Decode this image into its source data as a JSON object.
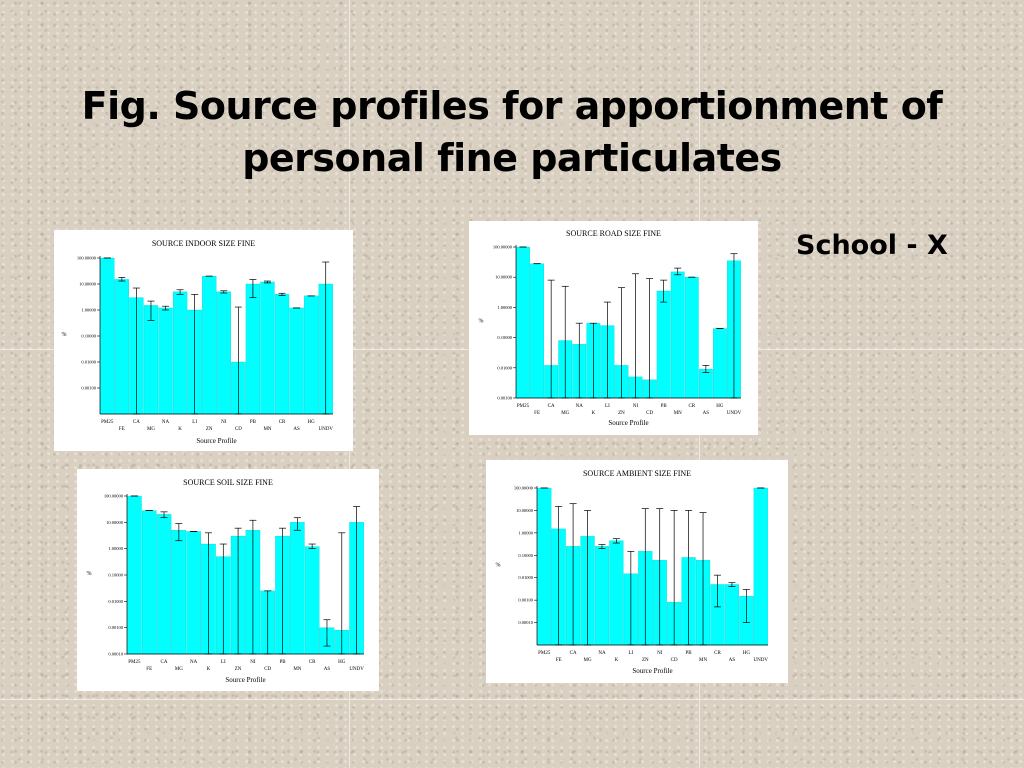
{
  "slide": {
    "title_line1": "Fig. Source profiles for apportionment of",
    "title_line2": "personal fine particulates",
    "subtitle": "School - X"
  },
  "colors": {
    "bar": "#00ffff",
    "bar_edge": "#00c8c8",
    "error": "#000000",
    "axis": "#000000"
  },
  "chart_data": [
    {
      "id": "indoor",
      "type": "bar",
      "title": "SOURCE  INDOOR   SIZE FINE",
      "xlabel": "Source Profile",
      "ylabel": "%",
      "yscale": "log",
      "ylim": [
        0.0001,
        100
      ],
      "yticks": [
        "100.00000",
        "10.00000",
        "1.00000",
        "0.10000",
        "0.01000",
        "0.00100"
      ],
      "categories": [
        "PM25",
        "FE",
        "CA",
        "MG",
        "NA",
        "K",
        "LI",
        "ZN",
        "NI",
        "CD",
        "PB",
        "MN",
        "CR",
        "AS",
        "HG",
        "UNDV"
      ],
      "values": [
        100,
        15,
        3,
        1.5,
        1.2,
        5,
        1,
        20,
        5,
        0.01,
        10,
        12,
        4,
        1.2,
        3.5,
        10
      ],
      "error_low": [
        100,
        13,
        0.0001,
        0.4,
        1.0,
        4,
        0.0001,
        20,
        4.5,
        0.0001,
        3,
        11,
        3.6,
        1.2,
        3.5,
        0.0001
      ],
      "error_high": [
        100,
        18,
        7,
        2.2,
        1.4,
        6,
        4,
        20,
        5.5,
        1.3,
        15,
        13,
        4.4,
        1.2,
        3.5,
        70
      ]
    },
    {
      "id": "road",
      "type": "bar",
      "title": "SOURCE   ROAD      SIZE FINE",
      "xlabel": "Source Profile",
      "ylabel": "%",
      "yscale": "log",
      "ylim": [
        0.001,
        100
      ],
      "yticks": [
        "100.00000",
        "10.00000",
        "1.00000",
        "0.10000",
        "0.01000",
        "0.00100"
      ],
      "categories": [
        "PM25",
        "FE",
        "CA",
        "MG",
        "NA",
        "K",
        "LI",
        "ZN",
        "NI",
        "CD",
        "PB",
        "MN",
        "CR",
        "AS",
        "HG",
        "UNDV"
      ],
      "values": [
        100,
        28,
        0.012,
        0.08,
        0.06,
        0.3,
        0.25,
        0.012,
        0.005,
        0.004,
        3.5,
        15,
        10,
        0.009,
        0.2,
        35
      ],
      "error_low": [
        100,
        28,
        0.001,
        0.001,
        0.001,
        0.001,
        0.001,
        0.001,
        0.001,
        0.001,
        1.5,
        12,
        10,
        0.007,
        0.2,
        0.001
      ],
      "error_high": [
        100,
        28,
        8,
        5,
        0.3,
        0.3,
        1.5,
        4.5,
        13,
        9,
        8,
        20,
        10,
        0.012,
        0.2,
        60
      ]
    },
    {
      "id": "soil",
      "type": "bar",
      "title": "SOURCE   SOIL      SIZE FINE",
      "xlabel": "Source Profile",
      "ylabel": "%",
      "yscale": "log",
      "ylim": [
        0.0001,
        100
      ],
      "yticks": [
        "100.00000",
        "10.00000",
        "1.00000",
        "0.10000",
        "0.01000",
        "0.00100",
        "0.00010"
      ],
      "categories": [
        "PM25",
        "FE",
        "CA",
        "MG",
        "NA",
        "K",
        "LI",
        "ZN",
        "NI",
        "CD",
        "PB",
        "MN",
        "CR",
        "AS",
        "HG",
        "UNDV"
      ],
      "values": [
        100,
        28,
        20,
        5,
        4.5,
        1.5,
        0.5,
        3,
        5,
        0.025,
        3,
        10,
        1.2,
        0.001,
        0.0008,
        10
      ],
      "error_low": [
        100,
        28,
        15,
        2,
        4.5,
        0.0001,
        0.0001,
        0.0001,
        0.0001,
        0.0001,
        0.0001,
        5,
        1.0,
        0.0002,
        0.0001,
        0.0001
      ],
      "error_high": [
        100,
        28,
        25,
        9,
        4.5,
        4,
        1.5,
        6,
        12,
        0.025,
        6,
        15,
        1.5,
        0.002,
        4,
        40
      ]
    },
    {
      "id": "ambient",
      "type": "bar",
      "title": "SOURCE   AMBIENT  SIZE FINE",
      "xlabel": "Source Profile",
      "ylabel": "%",
      "yscale": "log",
      "ylim": [
        1e-05,
        100
      ],
      "yticks": [
        "100.00000",
        "10.00000",
        "1.00000",
        "0.10000",
        "0.01000",
        "0.00100",
        "0.00010"
      ],
      "categories": [
        "PM25",
        "FE",
        "CA",
        "MG",
        "NA",
        "K",
        "LI",
        "ZN",
        "NI",
        "CD",
        "PB",
        "MN",
        "CR",
        "AS",
        "HG",
        "UNDV"
      ],
      "values": [
        100,
        1.5,
        0.25,
        0.7,
        0.25,
        0.45,
        0.015,
        0.15,
        0.06,
        0.0008,
        0.08,
        0.06,
        0.005,
        0.005,
        0.0015,
        100
      ],
      "error_low": [
        100,
        1e-05,
        1e-05,
        1e-05,
        0.2,
        0.35,
        1e-05,
        1e-05,
        1e-05,
        1e-05,
        1e-05,
        1e-05,
        0.0005,
        0.004,
        0.0001,
        100
      ],
      "error_high": [
        100,
        15,
        20,
        10,
        0.3,
        0.55,
        0.15,
        12,
        12,
        10,
        10,
        8,
        0.013,
        0.006,
        0.003,
        100
      ]
    }
  ]
}
